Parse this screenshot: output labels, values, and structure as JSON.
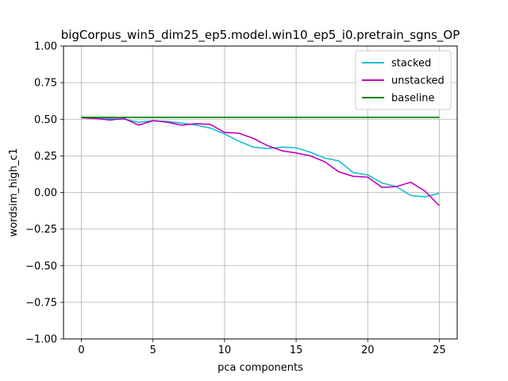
{
  "chart_data": {
    "type": "line",
    "title": "bigCorpus_win5_dim25_ep5.model.win10_ep5_i0.pretrain_sgns_OP",
    "xlabel": "pca components",
    "ylabel": "wordsim_high_c1",
    "xlim": [
      -1.25,
      26.25
    ],
    "ylim": [
      -1.0,
      1.0
    ],
    "xticks": [
      0,
      5,
      10,
      15,
      20,
      25
    ],
    "yticks": [
      -1.0,
      -0.75,
      -0.5,
      -0.25,
      0.0,
      0.25,
      0.5,
      0.75,
      1.0
    ],
    "xtick_labels": [
      "0",
      "5",
      "10",
      "15",
      "20",
      "25"
    ],
    "ytick_labels": [
      "−1.00",
      "−0.75",
      "−0.50",
      "−0.25",
      "0.00",
      "0.25",
      "0.50",
      "0.75",
      "1.00"
    ],
    "grid": true,
    "legend_position": "top-right",
    "x": [
      0,
      1,
      2,
      3,
      4,
      5,
      6,
      7,
      8,
      9,
      10,
      11,
      12,
      13,
      14,
      15,
      16,
      17,
      18,
      19,
      20,
      21,
      22,
      23,
      24,
      25
    ],
    "series": [
      {
        "name": "stacked",
        "color": "#17becf",
        "values": [
          0.515,
          0.51,
          0.505,
          0.5,
          0.48,
          0.49,
          0.485,
          0.475,
          0.46,
          0.44,
          0.4,
          0.35,
          0.31,
          0.3,
          0.31,
          0.305,
          0.275,
          0.235,
          0.215,
          0.135,
          0.12,
          0.065,
          0.04,
          -0.02,
          -0.03,
          -0.005
        ]
      },
      {
        "name": "unstacked",
        "color": "#bf00bf",
        "values": [
          0.51,
          0.505,
          0.495,
          0.505,
          0.46,
          0.49,
          0.48,
          0.46,
          0.47,
          0.465,
          0.41,
          0.405,
          0.37,
          0.32,
          0.285,
          0.27,
          0.25,
          0.21,
          0.14,
          0.11,
          0.105,
          0.035,
          0.04,
          0.07,
          0.01,
          -0.09
        ]
      },
      {
        "name": "baseline",
        "color": "#008000",
        "values": [
          0.513,
          0.513,
          0.513,
          0.513,
          0.513,
          0.513,
          0.513,
          0.513,
          0.513,
          0.513,
          0.513,
          0.513,
          0.513,
          0.513,
          0.513,
          0.513,
          0.513,
          0.513,
          0.513,
          0.513,
          0.513,
          0.513,
          0.513,
          0.513,
          0.513,
          0.513
        ]
      }
    ]
  }
}
